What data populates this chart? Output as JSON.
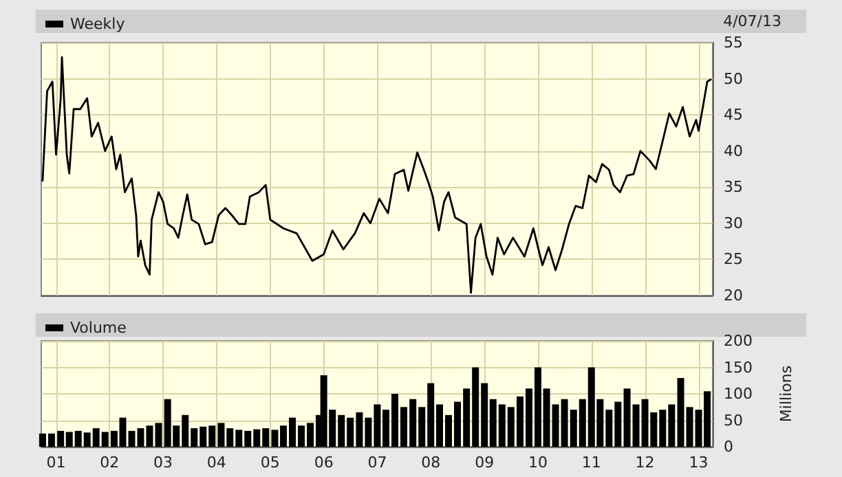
{
  "chart_data": [
    {
      "type": "line",
      "legend": "top left",
      "grid": true,
      "tick_labels": "y",
      "marker": "none",
      "line_style": "solid",
      "annotations": [
        "4/07/13"
      ],
      "xlim": [
        "2000-09-22",
        "2013-04-07"
      ],
      "xticks": [
        {
          "value": "2001-01-01",
          "label": null
        },
        {
          "value": "2002-01-01",
          "label": null
        },
        {
          "value": "2003-01-01",
          "label": null
        },
        {
          "value": "2004-01-01",
          "label": null
        },
        {
          "value": "2005-01-01",
          "label": null
        },
        {
          "value": "2006-01-01",
          "label": null
        },
        {
          "value": "2007-01-01",
          "label": null
        },
        {
          "value": "2008-01-01",
          "label": null
        },
        {
          "value": "2009-01-01",
          "label": null
        },
        {
          "value": "2010-01-01",
          "label": null
        },
        {
          "value": "2011-01-01",
          "label": null
        },
        {
          "value": "2012-01-01",
          "label": null
        },
        {
          "value": "2013-01-01",
          "label": null
        }
      ],
      "ylim": [
        20,
        55
      ],
      "yticks": [
        20,
        25,
        30,
        35,
        40,
        45,
        50,
        55
      ],
      "x": [
        "2000-10-01",
        "2000-11-01",
        "2000-12-07",
        "2001-01-01",
        "2001-02-01",
        "2001-02-10",
        "2001-03-15",
        "2001-04-01",
        "2001-05-01",
        "2001-06-15",
        "2001-08-01",
        "2001-09-01",
        "2001-10-15",
        "2001-12-01",
        "2002-01-15",
        "2002-02-15",
        "2002-03-15",
        "2002-04-15",
        "2002-06-01",
        "2002-07-01",
        "2002-07-15",
        "2002-08-01",
        "2002-09-01",
        "2002-10-01",
        "2002-10-15",
        "2002-12-01",
        "2003-01-01",
        "2003-02-01",
        "2003-03-15",
        "2003-04-15",
        "2003-05-15",
        "2003-06-15",
        "2003-07-15",
        "2003-09-01",
        "2003-10-15",
        "2003-12-01",
        "2004-01-15",
        "2004-03-01",
        "2004-04-15",
        "2004-06-01",
        "2004-07-15",
        "2004-08-15",
        "2004-10-15",
        "2004-12-01",
        "2005-01-01",
        "2005-04-01",
        "2005-07-01",
        "2005-10-15",
        "2006-01-01",
        "2006-03-01",
        "2006-05-15",
        "2006-08-01",
        "2006-10-01",
        "2006-11-15",
        "2007-01-15",
        "2007-03-15",
        "2007-05-01",
        "2007-07-01",
        "2007-08-01",
        "2007-10-01",
        "2007-11-15",
        "2007-12-15",
        "2008-01-15",
        "2008-02-25",
        "2008-04-01",
        "2008-05-01",
        "2008-06-15",
        "2008-09-01",
        "2008-10-01",
        "2008-11-01",
        "2008-12-07",
        "2009-01-15",
        "2009-02-25",
        "2009-04-01",
        "2009-05-15",
        "2009-07-15",
        "2009-10-01",
        "2009-12-01",
        "2010-01-01",
        "2010-02-01",
        "2010-03-15",
        "2010-05-01",
        "2010-06-15",
        "2010-08-01",
        "2010-09-15",
        "2010-11-01",
        "2010-12-15",
        "2011-02-01",
        "2011-03-15",
        "2011-05-01",
        "2011-06-01",
        "2011-07-15",
        "2011-09-01",
        "2011-10-15",
        "2011-12-01",
        "2012-02-01",
        "2012-03-15",
        "2012-05-01",
        "2012-06-15",
        "2012-08-01",
        "2012-09-15",
        "2012-11-01",
        "2012-12-15",
        "2013-01-01",
        "2013-02-01",
        "2013-03-01",
        "2013-03-25"
      ],
      "series": [
        {
          "name": "Weekly",
          "color": "#000000",
          "values": [
            35.9,
            48.3,
            49.6,
            39.5,
            47.1,
            53,
            39.5,
            36.9,
            45.8,
            45.8,
            47.3,
            42,
            43.9,
            40,
            42,
            37.5,
            39.5,
            34.3,
            36.2,
            31.1,
            25.4,
            27.6,
            24.2,
            22.9,
            30.5,
            34.3,
            33,
            29.9,
            29.3,
            28,
            31.1,
            34,
            30.5,
            29.9,
            27.1,
            27.4,
            31.1,
            32.1,
            31.1,
            29.9,
            29.9,
            33.7,
            34.3,
            35.3,
            30.5,
            29.3,
            28.6,
            24.8,
            25.7,
            29,
            26.4,
            28.6,
            31.4,
            30,
            33.4,
            31.4,
            36.8,
            37.4,
            34.5,
            39.8,
            37.4,
            35.7,
            33.7,
            29,
            33,
            34.3,
            30.8,
            29.9,
            20.4,
            28,
            29.9,
            25.4,
            22.9,
            28,
            25.7,
            28,
            25.4,
            29.3,
            26.7,
            24.2,
            26.7,
            23.5,
            26.4,
            29.9,
            32.4,
            32.1,
            36.6,
            35.7,
            38.2,
            37.4,
            35.3,
            34.3,
            36.6,
            36.8,
            40,
            38.7,
            37.5,
            41.4,
            45.2,
            43.4,
            46.1,
            42,
            44.3,
            42.8,
            46.3,
            49.6,
            49.9
          ]
        }
      ]
    },
    {
      "type": "bar",
      "legend": "top left",
      "grid": true,
      "ylabel": "Millions",
      "xlim": [
        "2000-09-22",
        "2013-04-07"
      ],
      "xticks": [
        {
          "value": "2001-01-01",
          "label": "01"
        },
        {
          "value": "2002-01-01",
          "label": "02"
        },
        {
          "value": "2003-01-01",
          "label": "03"
        },
        {
          "value": "2004-01-01",
          "label": "04"
        },
        {
          "value": "2005-01-01",
          "label": "05"
        },
        {
          "value": "2006-01-01",
          "label": "06"
        },
        {
          "value": "2007-01-01",
          "label": "07"
        },
        {
          "value": "2008-01-01",
          "label": "08"
        },
        {
          "value": "2009-01-01",
          "label": "09"
        },
        {
          "value": "2010-01-01",
          "label": "10"
        },
        {
          "value": "2011-01-01",
          "label": "11"
        },
        {
          "value": "2012-01-01",
          "label": "12"
        },
        {
          "value": "2013-01-01",
          "label": "13"
        }
      ],
      "ylim": [
        0,
        200
      ],
      "yticks": [
        0,
        50,
        100,
        150,
        200
      ],
      "x": [
        "2000-10",
        "2000-12",
        "2001-02",
        "2001-04",
        "2001-06",
        "2001-08",
        "2001-10",
        "2001-12",
        "2002-02",
        "2002-04",
        "2002-06",
        "2002-08",
        "2002-10",
        "2002-12",
        "2003-02",
        "2003-04",
        "2003-06",
        "2003-08",
        "2003-10",
        "2003-12",
        "2004-02",
        "2004-04",
        "2004-06",
        "2004-08",
        "2004-10",
        "2004-12",
        "2005-02",
        "2005-04",
        "2005-06",
        "2005-08",
        "2005-10",
        "2005-12",
        "2006-01",
        "2006-03",
        "2006-05",
        "2006-07",
        "2006-09",
        "2006-11",
        "2007-01",
        "2007-03",
        "2007-05",
        "2007-07",
        "2007-09",
        "2007-11",
        "2008-01",
        "2008-03",
        "2008-05",
        "2008-07",
        "2008-09",
        "2008-11",
        "2009-01",
        "2009-03",
        "2009-05",
        "2009-07",
        "2009-09",
        "2009-11",
        "2010-01",
        "2010-03",
        "2010-05",
        "2010-07",
        "2010-09",
        "2010-11",
        "2011-01",
        "2011-03",
        "2011-05",
        "2011-07",
        "2011-09",
        "2011-11",
        "2012-01",
        "2012-03",
        "2012-05",
        "2012-07",
        "2012-09",
        "2012-11",
        "2013-01",
        "2013-03"
      ],
      "series": [
        {
          "name": "Volume",
          "color": "#000000",
          "values": [
            25,
            25,
            30,
            28,
            30,
            27,
            35,
            28,
            30,
            55,
            30,
            35,
            40,
            45,
            90,
            40,
            60,
            35,
            38,
            40,
            45,
            35,
            32,
            30,
            33,
            35,
            32,
            40,
            55,
            40,
            45,
            60,
            135,
            70,
            60,
            55,
            65,
            55,
            80,
            70,
            100,
            75,
            90,
            75,
            120,
            80,
            60,
            85,
            110,
            150,
            120,
            90,
            80,
            75,
            95,
            110,
            150,
            110,
            80,
            90,
            70,
            90,
            150,
            90,
            70,
            85,
            110,
            80,
            90,
            65,
            70,
            80,
            130,
            75,
            70,
            105
          ]
        }
      ]
    }
  ]
}
